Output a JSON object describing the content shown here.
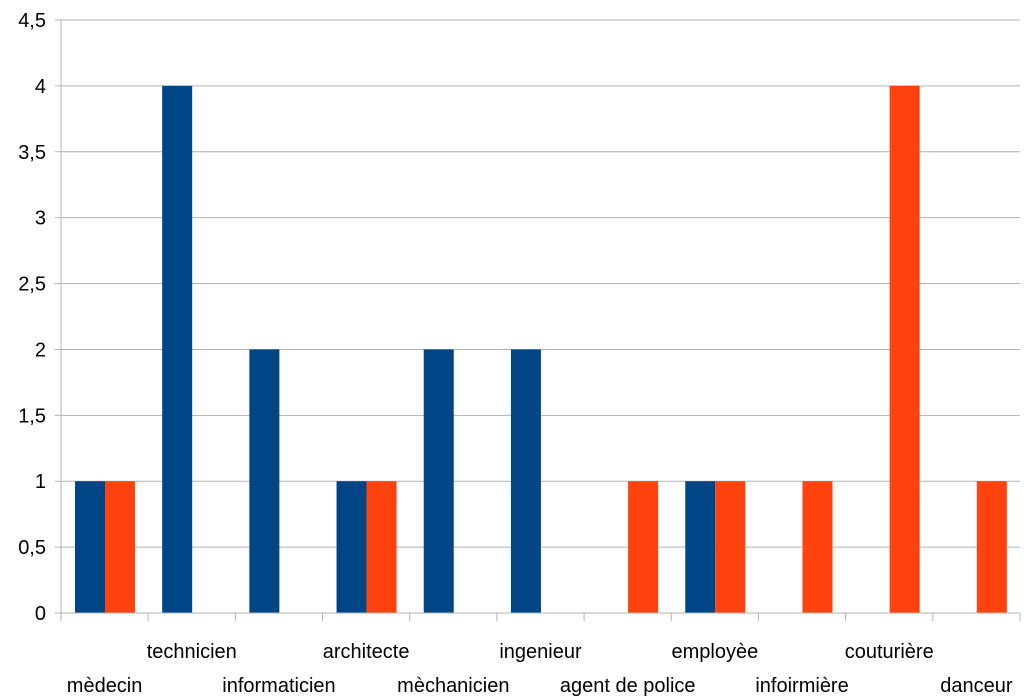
{
  "chart_data": {
    "type": "bar",
    "title": "",
    "xlabel": "",
    "ylabel": "",
    "ylim": [
      0,
      4.5
    ],
    "ytick_step": 0.5,
    "yticks": [
      "0",
      "0,5",
      "1",
      "1,5",
      "2",
      "2,5",
      "3",
      "3,5",
      "4",
      "4,5"
    ],
    "grid": true,
    "legend": "none",
    "categories": [
      "mèdecin",
      "technicien",
      "informaticien",
      "architecte",
      "mèchanicien",
      "ingenieur",
      "agent de police",
      "employèe",
      "infoirmière",
      "couturière",
      "danceur"
    ],
    "series": [
      {
        "color": "#004586",
        "values": [
          1,
          4,
          2,
          1,
          2,
          2,
          0,
          1,
          0,
          0,
          0
        ]
      },
      {
        "color": "#ff420e",
        "values": [
          1,
          0,
          0,
          1,
          0,
          0,
          1,
          1,
          1,
          4,
          1
        ]
      }
    ]
  }
}
